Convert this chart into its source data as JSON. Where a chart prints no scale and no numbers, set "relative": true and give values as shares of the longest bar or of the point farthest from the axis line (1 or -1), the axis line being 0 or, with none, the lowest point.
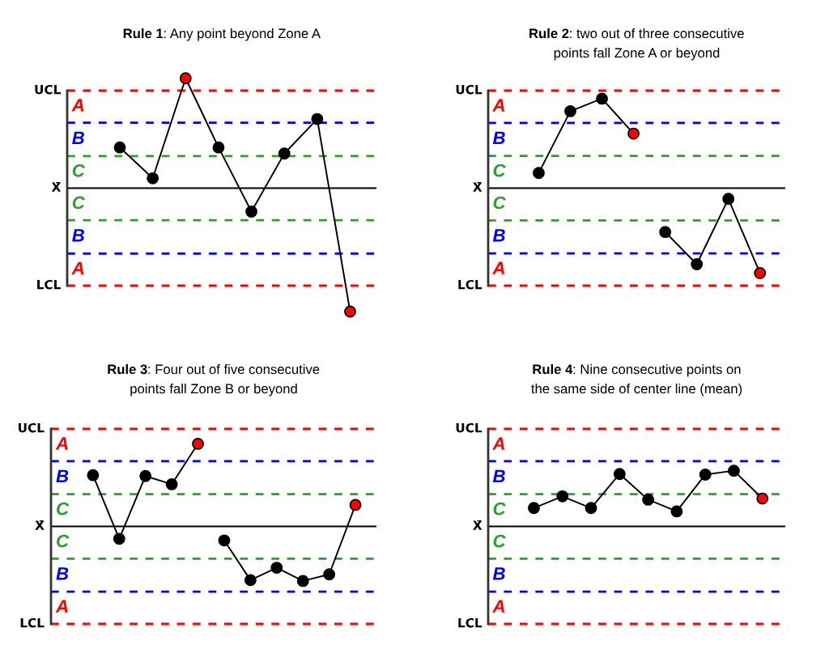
{
  "chart_data": [
    {
      "type": "line",
      "title": "Rule 1: Any point beyond Zone A",
      "relative": true,
      "marker": "circle",
      "line_style": "solid",
      "categories": [
        null,
        null,
        null,
        null,
        null,
        null,
        null,
        null
      ],
      "series": [
        {
          "color": "#000000",
          "values": [
            0.33,
            0.08,
            0.89,
            0.33,
            -0.19,
            0.28,
            0.56,
            -1
          ],
          "colors": [
            "#000000",
            "#000000",
            "#ff0000",
            "#000000",
            "#000000",
            "#000000",
            "#000000",
            "#ff0000"
          ]
        }
      ],
      "ref_lines": [
        {
          "axis": "y",
          "value": 0.79,
          "label": "UCL",
          "color": "#ff0000",
          "line_style": "dashed"
        },
        {
          "axis": "y",
          "value": 0.53,
          "label": null,
          "color": "#0000ff",
          "line_style": "dashed"
        },
        {
          "axis": "y",
          "value": 0.26,
          "label": null,
          "color": "#2e9e2e",
          "line_style": "dashed"
        },
        {
          "axis": "y",
          "value": 0,
          "label": "X̄",
          "color": "#000000",
          "line_style": "solid"
        },
        {
          "axis": "y",
          "value": -0.26,
          "label": null,
          "color": "#2e9e2e",
          "line_style": "dashed"
        },
        {
          "axis": "y",
          "value": -0.53,
          "label": null,
          "color": "#0000ff",
          "line_style": "dashed"
        },
        {
          "axis": "y",
          "value": -0.79,
          "label": "LCL",
          "color": "#ff0000",
          "line_style": "dashed"
        }
      ],
      "annotations": [
        "A",
        "B",
        "C",
        "C",
        "B",
        "A"
      ]
    },
    {
      "type": "line",
      "title": "Rule 2: two out of three consecutive\npoints fall Zone A or beyond",
      "relative": true,
      "marker": "circle",
      "line_style": "solid",
      "categories": [
        null,
        null,
        null,
        null,
        null,
        null,
        null,
        null
      ],
      "series": [
        {
          "color": "#000000",
          "values": [
            0.17,
            0.86,
            1,
            0.61,
            null,
            null,
            null,
            null
          ],
          "colors": [
            "#000000",
            "#000000",
            "#000000",
            "#ff0000",
            null,
            null,
            null,
            null
          ]
        },
        {
          "color": "#000000",
          "values": [
            null,
            null,
            null,
            null,
            -0.49,
            -0.85,
            -0.12,
            -0.95
          ],
          "colors": [
            null,
            null,
            null,
            null,
            "#000000",
            "#000000",
            "#000000",
            "#ff0000"
          ]
        }
      ],
      "ref_lines": [
        {
          "axis": "y",
          "value": 1.09,
          "label": "UCL",
          "color": "#ff0000",
          "line_style": "dashed"
        },
        {
          "axis": "y",
          "value": 0.73,
          "label": null,
          "color": "#0000ff",
          "line_style": "dashed"
        },
        {
          "axis": "y",
          "value": 0.36,
          "label": null,
          "color": "#2e9e2e",
          "line_style": "dashed"
        },
        {
          "axis": "y",
          "value": 0,
          "label": "X̄",
          "color": "#000000",
          "line_style": "solid"
        },
        {
          "axis": "y",
          "value": -0.36,
          "label": null,
          "color": "#2e9e2e",
          "line_style": "dashed"
        },
        {
          "axis": "y",
          "value": -0.73,
          "label": null,
          "color": "#0000ff",
          "line_style": "dashed"
        },
        {
          "axis": "y",
          "value": -1.09,
          "label": "LCL",
          "color": "#ff0000",
          "line_style": "dashed"
        }
      ],
      "annotations": [
        "A",
        "B",
        "C",
        "C",
        "B",
        "A"
      ]
    },
    {
      "type": "line",
      "title": "Rule 3: Four out of five consecutive\npoints fall Zone B or beyond",
      "relative": true,
      "marker": "circle",
      "line_style": "solid",
      "categories": [
        null,
        null,
        null,
        null,
        null,
        null,
        null,
        null,
        null,
        null,
        null
      ],
      "series": [
        {
          "color": "#000000",
          "values": [
            0.62,
            -0.15,
            0.61,
            0.51,
            1,
            null,
            null,
            null,
            null,
            null,
            null
          ],
          "colors": [
            "#000000",
            "#000000",
            "#000000",
            "#000000",
            "#ff0000",
            null,
            null,
            null,
            null,
            null,
            null
          ]
        },
        {
          "color": "#000000",
          "values": [
            null,
            null,
            null,
            null,
            null,
            -0.17,
            -0.65,
            -0.5,
            -0.66,
            -0.58,
            0.26
          ],
          "colors": [
            null,
            null,
            null,
            null,
            null,
            "#000000",
            "#000000",
            "#000000",
            "#000000",
            "#000000",
            "#ff0000"
          ]
        }
      ],
      "ref_lines": [
        {
          "axis": "y",
          "value": 1.18,
          "label": "UCL",
          "color": "#ff0000",
          "line_style": "dashed"
        },
        {
          "axis": "y",
          "value": 0.79,
          "label": null,
          "color": "#0000ff",
          "line_style": "dashed"
        },
        {
          "axis": "y",
          "value": 0.39,
          "label": null,
          "color": "#2e9e2e",
          "line_style": "dashed"
        },
        {
          "axis": "y",
          "value": 0,
          "label": "X̄",
          "color": "#000000",
          "line_style": "solid"
        },
        {
          "axis": "y",
          "value": -0.39,
          "label": null,
          "color": "#2e9e2e",
          "line_style": "dashed"
        },
        {
          "axis": "y",
          "value": -0.79,
          "label": null,
          "color": "#0000ff",
          "line_style": "dashed"
        },
        {
          "axis": "y",
          "value": -1.18,
          "label": "LCL",
          "color": "#ff0000",
          "line_style": "dashed"
        }
      ],
      "annotations": [
        "A",
        "B",
        "C",
        "C",
        "B",
        "A"
      ]
    },
    {
      "type": "line",
      "title": "Rule 4: Nine consecutive points on\nthe same side of center line (mean)",
      "relative": true,
      "marker": "circle",
      "line_style": "solid",
      "categories": [
        null,
        null,
        null,
        null,
        null,
        null,
        null,
        null,
        null
      ],
      "series": [
        {
          "color": "#000000",
          "values": [
            0.33,
            0.54,
            0.33,
            0.94,
            0.48,
            0.27,
            0.93,
            1,
            0.5
          ],
          "colors": [
            "#000000",
            "#000000",
            "#000000",
            "#000000",
            "#000000",
            "#000000",
            "#000000",
            "#000000",
            "#ff0000"
          ]
        }
      ],
      "ref_lines": [
        {
          "axis": "y",
          "value": 1.75,
          "label": "UCL",
          "color": "#ff0000",
          "line_style": "dashed"
        },
        {
          "axis": "y",
          "value": 1.17,
          "label": null,
          "color": "#0000ff",
          "line_style": "dashed"
        },
        {
          "axis": "y",
          "value": 0.58,
          "label": null,
          "color": "#2e9e2e",
          "line_style": "dashed"
        },
        {
          "axis": "y",
          "value": 0,
          "label": "X̄",
          "color": "#000000",
          "line_style": "solid"
        },
        {
          "axis": "y",
          "value": -0.58,
          "label": null,
          "color": "#2e9e2e",
          "line_style": "dashed"
        },
        {
          "axis": "y",
          "value": -1.17,
          "label": null,
          "color": "#0000ff",
          "line_style": "dashed"
        },
        {
          "axis": "y",
          "value": -1.75,
          "label": "LCL",
          "color": "#ff0000",
          "line_style": "dashed"
        }
      ],
      "annotations": [
        "A",
        "B",
        "C",
        "C",
        "B",
        "A"
      ]
    }
  ]
}
